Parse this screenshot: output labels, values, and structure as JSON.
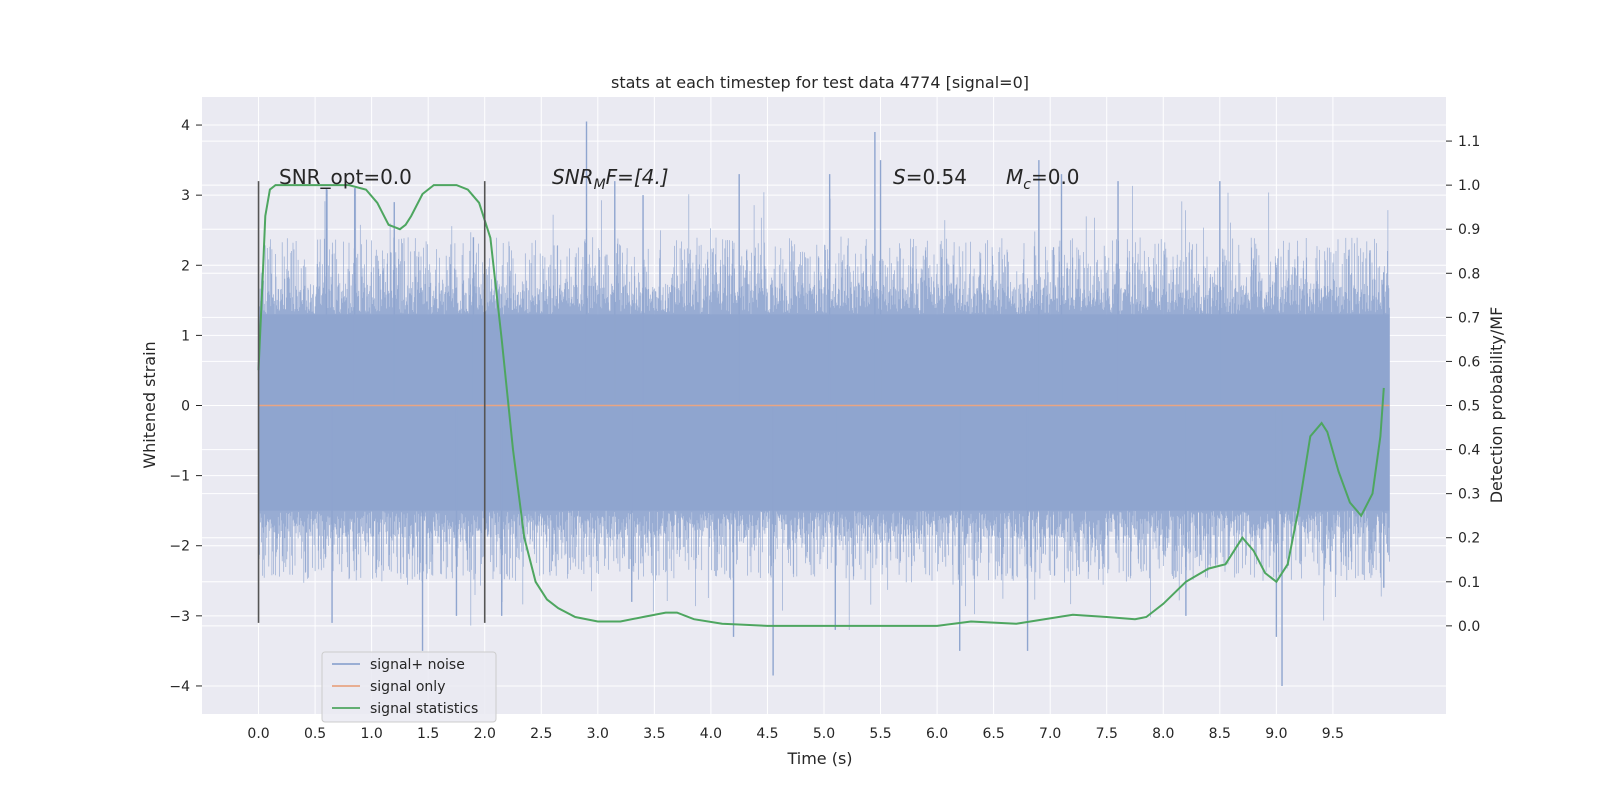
{
  "chart_data": {
    "type": "line",
    "title": "stats at each timestep for test data 4774 [signal=0]",
    "xlabel": "Time (s)",
    "ylabel_left": "Whitened strain",
    "ylabel_right": "Detection probability/MF",
    "xlim": [
      -0.5,
      10.5
    ],
    "ylim_left": [
      -4.4,
      4.4
    ],
    "ylim_right": [
      -0.2,
      1.2
    ],
    "x_ticks": [
      0.0,
      0.5,
      1.0,
      1.5,
      2.0,
      2.5,
      3.0,
      3.5,
      4.0,
      4.5,
      5.0,
      5.5,
      6.0,
      6.5,
      7.0,
      7.5,
      8.0,
      8.5,
      9.0,
      9.5
    ],
    "x_tick_labels": [
      "0.0",
      "0.5",
      "1.0",
      "1.5",
      "2.0",
      "2.5",
      "3.0",
      "3.5",
      "4.0",
      "4.5",
      "5.0",
      "5.5",
      "6.0",
      "6.5",
      "7.0",
      "7.5",
      "8.0",
      "8.5",
      "9.0",
      "9.5"
    ],
    "y_left_ticks": [
      -4,
      -3,
      -2,
      -1,
      0,
      1,
      2,
      3,
      4
    ],
    "y_left_tick_labels": [
      "−4",
      "−3",
      "−2",
      "−1",
      "0",
      "1",
      "2",
      "3",
      "4"
    ],
    "y_right_ticks": [
      0.0,
      0.1,
      0.2,
      0.3,
      0.4,
      0.5,
      0.6,
      0.7,
      0.8,
      0.9,
      1.0,
      1.1
    ],
    "y_right_tick_labels": [
      "0.0",
      "0.1",
      "0.2",
      "0.3",
      "0.4",
      "0.5",
      "0.6",
      "0.7",
      "0.8",
      "0.9",
      "1.0",
      "1.1"
    ],
    "grid": true,
    "legend_position": "lower-left",
    "annotations": {
      "snr_opt": "SNR_opt=0.0",
      "snr_mf_main": "SNR",
      "snr_mf_sub": "M",
      "snr_mf_rest": "F=[4.]",
      "s_sym": "S",
      "s_val": "=0.54",
      "mc_sym": "M",
      "mc_sub": "c",
      "mc_val": "=0.0"
    },
    "vertical_markers": [
      0.0,
      2.0
    ],
    "series": [
      {
        "name": "signal+ noise",
        "color": "#8fa5cf",
        "axis": "left",
        "x_range": [
          0.0,
          10.0
        ],
        "envelope_typical": [
          -1.5,
          1.3
        ],
        "spikes": [
          [
            0.6,
            3.1
          ],
          [
            0.85,
            3.1
          ],
          [
            1.2,
            2.9
          ],
          [
            1.45,
            -3.5
          ],
          [
            1.9,
            2.4
          ],
          [
            2.9,
            4.05
          ],
          [
            3.4,
            3.0
          ],
          [
            3.15,
            3.2
          ],
          [
            4.2,
            -3.3
          ],
          [
            4.25,
            3.3
          ],
          [
            4.55,
            -3.85
          ],
          [
            5.05,
            3.3
          ],
          [
            5.1,
            -3.2
          ],
          [
            5.45,
            3.9
          ],
          [
            5.5,
            3.5
          ],
          [
            6.2,
            -3.5
          ],
          [
            6.8,
            -3.5
          ],
          [
            6.9,
            3.5
          ],
          [
            7.1,
            3.3
          ],
          [
            7.6,
            3.2
          ],
          [
            8.5,
            3.2
          ],
          [
            9.05,
            -4.0
          ],
          [
            9.0,
            -3.3
          ],
          [
            0.65,
            -3.1
          ],
          [
            1.75,
            -3.0
          ],
          [
            3.3,
            -2.8
          ],
          [
            2.15,
            -3.0
          ],
          [
            8.2,
            -3.0
          ],
          [
            9.95,
            1.9
          ],
          [
            9.95,
            -2.6
          ]
        ]
      },
      {
        "name": "signal only",
        "color": "#e8a584",
        "axis": "left",
        "x": [
          0.0,
          10.0
        ],
        "y": [
          0.0,
          0.0
        ]
      },
      {
        "name": "signal statistics",
        "color": "#4ea660",
        "axis": "right",
        "x": [
          0.0,
          0.03,
          0.06,
          0.1,
          0.15,
          0.25,
          0.4,
          0.6,
          0.8,
          0.95,
          1.05,
          1.15,
          1.25,
          1.3,
          1.35,
          1.45,
          1.55,
          1.65,
          1.75,
          1.85,
          1.95,
          2.05,
          2.15,
          2.25,
          2.35,
          2.45,
          2.55,
          2.65,
          2.8,
          3.0,
          3.2,
          3.4,
          3.6,
          3.7,
          3.85,
          4.1,
          4.5,
          5.0,
          5.5,
          6.0,
          6.3,
          6.7,
          6.95,
          7.2,
          7.5,
          7.75,
          7.85,
          8.0,
          8.2,
          8.4,
          8.55,
          8.7,
          8.8,
          8.9,
          9.0,
          9.1,
          9.2,
          9.3,
          9.4,
          9.45,
          9.55,
          9.65,
          9.75,
          9.85,
          9.92,
          9.95
        ],
        "y": [
          0.58,
          0.75,
          0.93,
          0.99,
          1.0,
          1.0,
          1.0,
          1.0,
          1.0,
          0.99,
          0.96,
          0.91,
          0.9,
          0.91,
          0.93,
          0.98,
          1.0,
          1.0,
          1.0,
          0.99,
          0.96,
          0.88,
          0.65,
          0.4,
          0.2,
          0.1,
          0.06,
          0.04,
          0.02,
          0.01,
          0.01,
          0.02,
          0.03,
          0.03,
          0.015,
          0.005,
          0.0,
          0.0,
          0.0,
          0.0,
          0.01,
          0.005,
          0.015,
          0.025,
          0.02,
          0.015,
          0.02,
          0.05,
          0.1,
          0.13,
          0.14,
          0.2,
          0.17,
          0.12,
          0.1,
          0.14,
          0.27,
          0.43,
          0.46,
          0.44,
          0.35,
          0.28,
          0.25,
          0.3,
          0.43,
          0.54
        ]
      }
    ]
  },
  "colors": {
    "plot_bg": "#eaeaf2",
    "grid": "#ffffff",
    "text": "#262626",
    "marker": "#555555"
  }
}
